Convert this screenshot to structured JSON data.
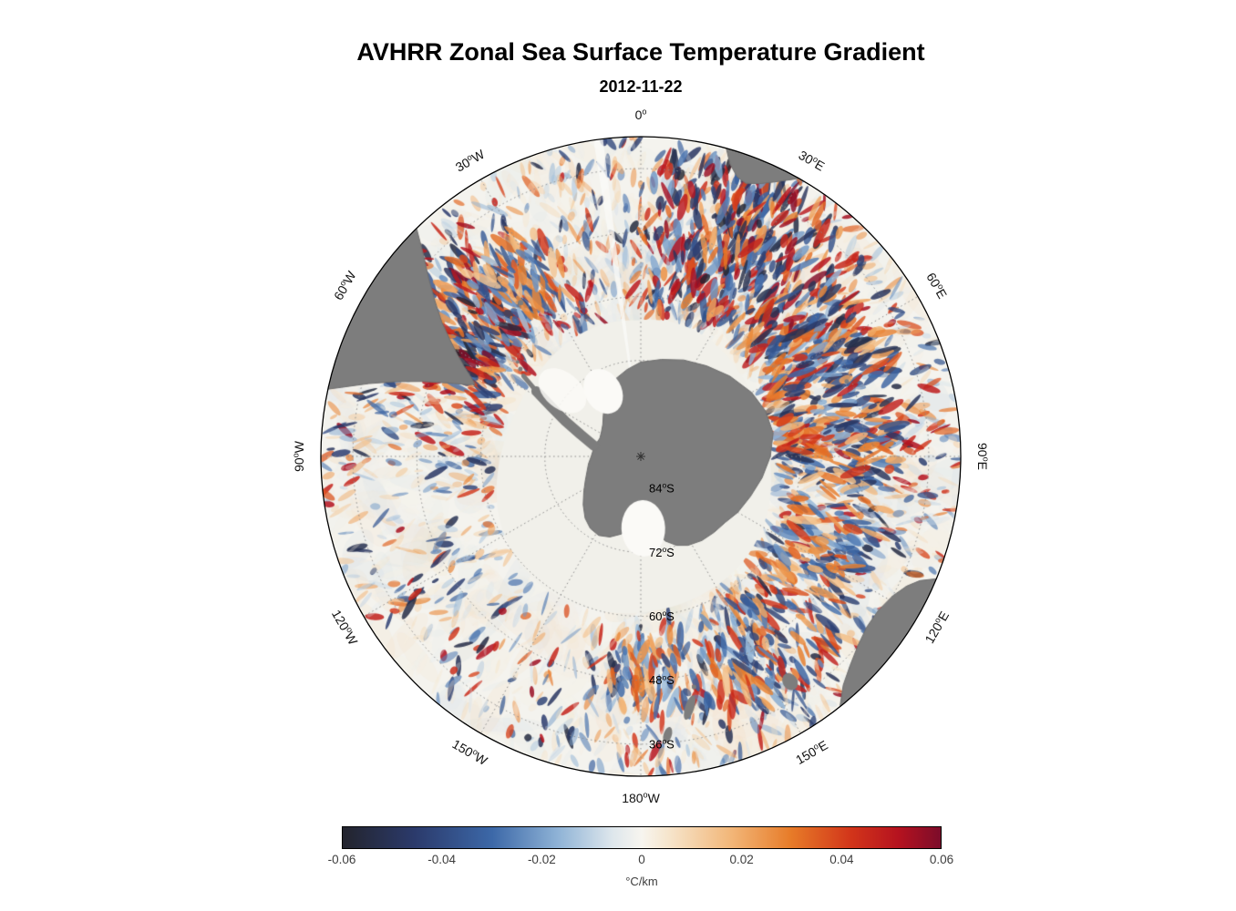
{
  "title": "AVHRR Zonal Sea Surface Temperature Gradient",
  "subtitle": "2012-11-22",
  "chart_data": {
    "type": "heatmap",
    "title": "AVHRR Zonal Sea Surface Temperature Gradient",
    "subtitle_date": "2012-11-22",
    "projection": "south polar stereographic",
    "variable": "zonal sea surface temperature gradient",
    "lat_range_deg": [
      -90,
      -30
    ],
    "grid": {
      "lon_spoke_step_deg": 30,
      "lat_circle_labels": [
        {
          "text": "84°S",
          "lat": 84
        },
        {
          "text": "72°S",
          "lat": 72
        },
        {
          "text": "60°S",
          "lat": 60
        },
        {
          "text": "48°S",
          "lat": 48
        },
        {
          "text": "36°S",
          "lat": 36
        }
      ],
      "lon_labels": [
        {
          "text": "0°",
          "az": 0
        },
        {
          "text": "30°E",
          "az": 30
        },
        {
          "text": "60°E",
          "az": 60
        },
        {
          "text": "90°E",
          "az": 90
        },
        {
          "text": "120°E",
          "az": 120
        },
        {
          "text": "150°E",
          "az": 150
        },
        {
          "text": "180°W",
          "az": 180
        },
        {
          "text": "150°W",
          "az": -150
        },
        {
          "text": "120°W",
          "az": -120
        },
        {
          "text": "90°W",
          "az": -90
        },
        {
          "text": "60°W",
          "az": -60
        },
        {
          "text": "30°W",
          "az": -30
        }
      ]
    },
    "colorbar": {
      "min": -0.06,
      "max": 0.06,
      "ticks": [
        "-0.06",
        "-0.04",
        "-0.02",
        "0",
        "0.02",
        "0.04",
        "0.06"
      ],
      "unit_label": "°C/km",
      "stops": [
        {
          "p": 0.0,
          "c": "#23242d"
        },
        {
          "p": 0.12,
          "c": "#2b3a6b"
        },
        {
          "p": 0.25,
          "c": "#3c68a8"
        },
        {
          "p": 0.36,
          "c": "#8fb3d6"
        },
        {
          "p": 0.45,
          "c": "#dde6ec"
        },
        {
          "p": 0.5,
          "c": "#f7f5ef"
        },
        {
          "p": 0.55,
          "c": "#f6e3c8"
        },
        {
          "p": 0.65,
          "c": "#f2b678"
        },
        {
          "p": 0.75,
          "c": "#e77b28"
        },
        {
          "p": 0.85,
          "c": "#d2351a"
        },
        {
          "p": 0.93,
          "c": "#b5121f"
        },
        {
          "p": 1.0,
          "c": "#7c0c2a"
        }
      ]
    },
    "colors": {
      "land": "#7d7d7d",
      "ocean": "#f4f3ee",
      "ice": "#f1f0ea"
    }
  }
}
